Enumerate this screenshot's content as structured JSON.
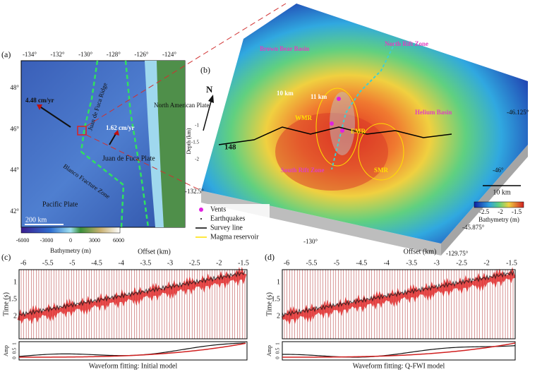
{
  "panel_a": {
    "label": "(a)",
    "lon_ticks": [
      "-134°",
      "-132°",
      "-130°",
      "-128°",
      "-126°",
      "-124°"
    ],
    "lat_ticks": [
      "48°",
      "46°",
      "44°",
      "42°"
    ],
    "annotations": [
      "4.48 cm/yr",
      "1.62 cm/yr",
      "Juan de Fuca Ridge",
      "Juan de Fuca Plate",
      "North American Plate",
      "Blanco Fracture Zone",
      "Pacific Plate",
      "200 km"
    ],
    "colorbar_ticks": [
      -6000,
      -3000,
      0,
      3000,
      6000
    ],
    "colorbar_label": "Bathymetry (m)"
  },
  "panel_b": {
    "label": "(b)",
    "north": "N",
    "annotations": [
      "Brown Bear Basin",
      "North Rift Zone",
      "Helium Basin",
      "10 km",
      "11 km",
      "WMR",
      "EMR",
      "South Rift Zone",
      "SMR",
      "148"
    ],
    "depth_label": "Depth (km)",
    "depth_ticks": [
      -1,
      -1.5,
      -2
    ],
    "lon_labels": [
      "-132.5°",
      "-130°",
      "-129.75°"
    ],
    "lat_labels": [
      "-46.125°",
      "-46°",
      "-45.875°"
    ],
    "scale_bar": "10 km",
    "colorbar_ticks": [
      -2.5,
      -2.0,
      -1.5
    ],
    "colorbar_label": "Bathymetry (m)",
    "legend": [
      "Vents",
      "Earthquakes",
      "Survey line",
      "Magma reservoir"
    ]
  },
  "panel_c": {
    "label": "(c)",
    "x_axis_label": "Offset (km)",
    "x_ticks": [
      -6,
      -5.5,
      -5,
      -4.5,
      -4,
      -3.5,
      -3,
      -2.5,
      -2,
      -1.5
    ],
    "y_axis_label": "Time (s)",
    "y_ticks": [
      1,
      1.5,
      2
    ],
    "amp_label": "Amp",
    "amp_ticks": [
      0,
      0.5,
      1
    ],
    "caption": "Waveform fitting: Initial model"
  },
  "panel_d": {
    "label": "(d)",
    "x_axis_label": "Offset (km)",
    "x_ticks": [
      -6,
      -5.5,
      -5,
      -4.5,
      -4,
      -3.5,
      -3,
      -2.5,
      -2,
      -1.5
    ],
    "y_axis_label": "Time (s)",
    "y_ticks": [
      1,
      1.5,
      2
    ],
    "amp_label": "Amp",
    "amp_ticks": [
      0,
      0.5,
      1
    ],
    "caption": "Waveform fitting: Q-FWI model"
  }
}
